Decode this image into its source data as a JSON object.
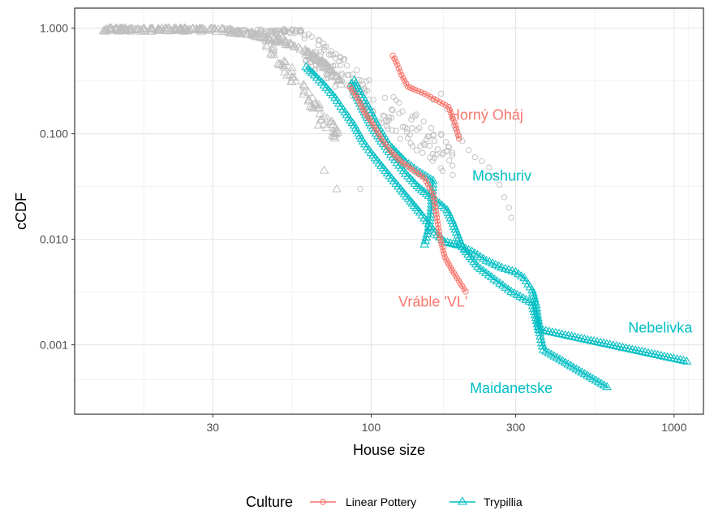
{
  "chart_data": {
    "type": "line",
    "xlabel": "House size",
    "ylabel": "cCDF",
    "x_scale": "log",
    "y_scale": "log",
    "xlim": [
      10.5,
      1250
    ],
    "ylim": [
      0.00022,
      1.55
    ],
    "x_ticks": [
      {
        "value": 30,
        "label": "30"
      },
      {
        "value": 100,
        "label": "100"
      },
      {
        "value": 300,
        "label": "300"
      },
      {
        "value": 1000,
        "label": "1000"
      }
    ],
    "y_ticks": [
      {
        "value": 0.001,
        "label": "0.001"
      },
      {
        "value": 0.01,
        "label": "0.010"
      },
      {
        "value": 0.1,
        "label": "0.100"
      },
      {
        "value": 1,
        "label": "1.000"
      }
    ],
    "grid": true,
    "legend": {
      "position": "bottom",
      "title": "Culture",
      "entries": [
        {
          "label": "Linear Pottery",
          "color": "#F8766D",
          "marker": "circle"
        },
        {
          "label": "Trypillia",
          "color": "#00BFC4",
          "marker": "triangle"
        }
      ]
    },
    "colors": {
      "linear_pottery": "#F8766D",
      "trypillia": "#00BFC4",
      "background_points": "#BEBEBE"
    },
    "series": [
      {
        "culture": "Trypillia",
        "label": "Nebelivka",
        "points": [
          [
            61,
            0.43
          ],
          [
            65,
            0.36
          ],
          [
            70,
            0.29
          ],
          [
            76,
            0.22
          ],
          [
            82,
            0.16
          ],
          [
            88,
            0.12
          ],
          [
            94,
            0.085
          ],
          [
            100,
            0.066
          ],
          [
            108,
            0.05
          ],
          [
            115,
            0.04
          ],
          [
            125,
            0.03
          ],
          [
            135,
            0.023
          ],
          [
            145,
            0.018
          ],
          [
            155,
            0.014
          ],
          [
            165,
            0.011
          ],
          [
            175,
            0.0095
          ],
          [
            195,
            0.0088
          ],
          [
            215,
            0.0077
          ],
          [
            240,
            0.0063
          ],
          [
            270,
            0.0054
          ],
          [
            300,
            0.0049
          ],
          [
            320,
            0.0043
          ],
          [
            340,
            0.0033
          ],
          [
            350,
            0.0024
          ],
          [
            355,
            0.0018
          ],
          [
            360,
            0.0014
          ],
          [
            1100,
            0.0007
          ]
        ]
      },
      {
        "culture": "Trypillia",
        "label": "Moshuriv",
        "points": [
          [
            88,
            0.32
          ],
          [
            92,
            0.25
          ],
          [
            98,
            0.18
          ],
          [
            105,
            0.12
          ],
          [
            115,
            0.078
          ],
          [
            130,
            0.054
          ],
          [
            145,
            0.043
          ],
          [
            160,
            0.036
          ],
          [
            158,
            0.02
          ],
          [
            155,
            0.013
          ],
          [
            150,
            0.009
          ]
        ]
      },
      {
        "culture": "Trypillia",
        "label": "Maidanetske",
        "points": [
          [
            86,
            0.3
          ],
          [
            90,
            0.22
          ],
          [
            95,
            0.16
          ],
          [
            100,
            0.12
          ],
          [
            108,
            0.085
          ],
          [
            118,
            0.06
          ],
          [
            130,
            0.042
          ],
          [
            142,
            0.032
          ],
          [
            155,
            0.026
          ],
          [
            168,
            0.022
          ],
          [
            178,
            0.019
          ],
          [
            185,
            0.015
          ],
          [
            200,
            0.0085
          ],
          [
            225,
            0.0055
          ],
          [
            255,
            0.0042
          ],
          [
            290,
            0.0032
          ],
          [
            340,
            0.0025
          ],
          [
            350,
            0.0018
          ],
          [
            360,
            0.0013
          ],
          [
            370,
            0.0009
          ],
          [
            600,
            0.0004
          ]
        ]
      },
      {
        "culture": "Linear Pottery",
        "label": "Horný Oháj",
        "points": [
          [
            118,
            0.55
          ],
          [
            122,
            0.45
          ],
          [
            126,
            0.36
          ],
          [
            132,
            0.28
          ],
          [
            140,
            0.26
          ],
          [
            150,
            0.24
          ],
          [
            180,
            0.18
          ],
          [
            190,
            0.12
          ],
          [
            195,
            0.09
          ]
        ]
      },
      {
        "culture": "Linear Pottery",
        "label": "Vráble 'VL'",
        "points": [
          [
            85,
            0.28
          ],
          [
            90,
            0.22
          ],
          [
            95,
            0.16
          ],
          [
            100,
            0.13
          ],
          [
            108,
            0.09
          ],
          [
            115,
            0.07
          ],
          [
            125,
            0.055
          ],
          [
            138,
            0.045
          ],
          [
            150,
            0.038
          ],
          [
            160,
            0.027
          ],
          [
            165,
            0.016
          ],
          [
            168,
            0.011
          ],
          [
            175,
            0.0068
          ],
          [
            185,
            0.0051
          ],
          [
            205,
            0.0032
          ]
        ]
      }
    ],
    "annotations": [
      {
        "text": "Horný Oháj",
        "x": 240,
        "y": 0.135,
        "color": "#F8766D"
      },
      {
        "text": "Moshuriv",
        "x": 270,
        "y": 0.036,
        "color": "#00BFC4"
      },
      {
        "text": "Vráble 'VL'",
        "x": 160,
        "y": 0.0023,
        "color": "#F8766D"
      },
      {
        "text": "Nebelivka",
        "x": 900,
        "y": 0.0013,
        "color": "#00BFC4"
      },
      {
        "text": "Maidanetske",
        "x": 290,
        "y": 0.00035,
        "color": "#00BFC4"
      }
    ]
  }
}
